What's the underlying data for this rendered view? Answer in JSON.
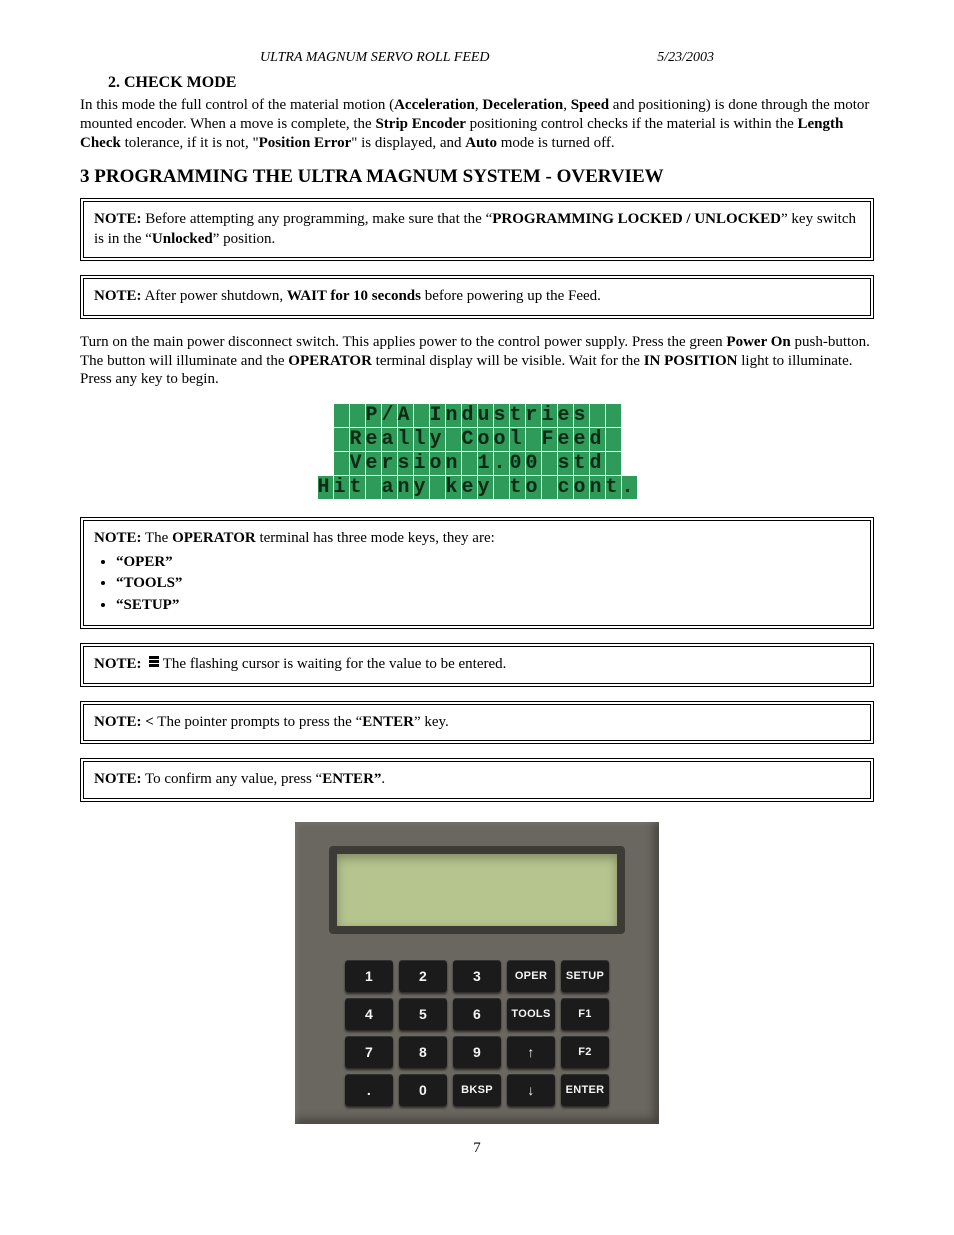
{
  "header": {
    "title": "ULTRA  MAGNUM SERVO ROLL FEED",
    "date": "5/23/2003"
  },
  "section2": {
    "num_title": "2.   CHECK MODE",
    "body_pre": "In this mode the full control of the material motion (",
    "accel": "Acceleration",
    "sep1": ", ",
    "decel": "Deceleration",
    "sep2": ", ",
    "speed": "Speed",
    "body_mid1": " and positioning) is done through the motor mounted encoder. When a move is complete, the ",
    "strip_enc": "Strip Encoder",
    "body_mid2": " positioning control checks if the material is within the ",
    "len_chk": "Length Check",
    "body_mid3": " tolerance, if it is not, \"",
    "pos_err": "Position Error",
    "body_mid4": "\" is displayed, and ",
    "auto": "Auto",
    "body_end": " mode is turned off."
  },
  "section3": {
    "heading": "3 PROGRAMMING THE ULTRA MAGNUM SYSTEM - OVERVIEW"
  },
  "notes": {
    "n1_label": "NOTE:",
    "n1_a": " Before attempting any programming, make sure that the “",
    "n1_b": "PROGRAMMING LOCKED / UNLOCKED",
    "n1_c": "” key switch is in the “",
    "n1_d": "Unlocked",
    "n1_e": "” position.",
    "n2_label": "NOTE:",
    "n2_a": "  After power shutdown, ",
    "n2_b": "WAIT for 10 seconds",
    "n2_c": " before powering up the Feed.",
    "n3_label": "NOTE:",
    "n3_a": " The ",
    "n3_b": "OPERATOR",
    "n3_c": " terminal has three mode keys, they are:",
    "n3_items": [
      "“OPER”",
      "“TOOLS”",
      "“SETUP”"
    ],
    "n4_label": "NOTE:",
    "n4_a": "The flashing cursor is waiting for the value to be entered.",
    "n5_label": "NOTE:  <",
    "n5_a": " The pointer prompts to press the “",
    "n5_b": "ENTER",
    "n5_c": "” key.",
    "n6_label": "NOTE:",
    "n6_a": " To confirm any value, press “",
    "n6_b": "ENTER”",
    "n6_c": "."
  },
  "para_power": {
    "a": "Turn on the main power disconnect switch.  This applies power to the control power supply.  Press the green ",
    "b": "Power On",
    "c": " push-button.  The button will illuminate and the ",
    "d": "OPERATOR",
    "e": " terminal display will be visible. Wait for the ",
    "f": "IN POSITION",
    "g": " light to illuminate. Press any key to begin."
  },
  "lcd": {
    "line1": "  P/A Industries  ",
    "line2": " Really Cool Feed ",
    "line3": " Version 1.00 std ",
    "line4": "Hit any key to cont.",
    "bg": "#2e9b5a",
    "fg": "#0c2a14"
  },
  "keypad": {
    "panel_bg": "#6a6660",
    "screen_bg": "#b6c48e",
    "key_bg": "#1b1b1b",
    "key_fg": "#f4f4f2",
    "rows": [
      [
        "1",
        "2",
        "3",
        "OPER",
        "SETUP"
      ],
      [
        "4",
        "5",
        "6",
        "TOOLS",
        "F1"
      ],
      [
        "7",
        "8",
        "9",
        "↑",
        "F2"
      ],
      [
        ".",
        "0",
        "BKSP",
        "↓",
        "ENTER"
      ]
    ],
    "small": [
      "OPER",
      "SETUP",
      "TOOLS",
      "F1",
      "F2",
      "BKSP",
      "ENTER"
    ]
  },
  "page_number": "7"
}
